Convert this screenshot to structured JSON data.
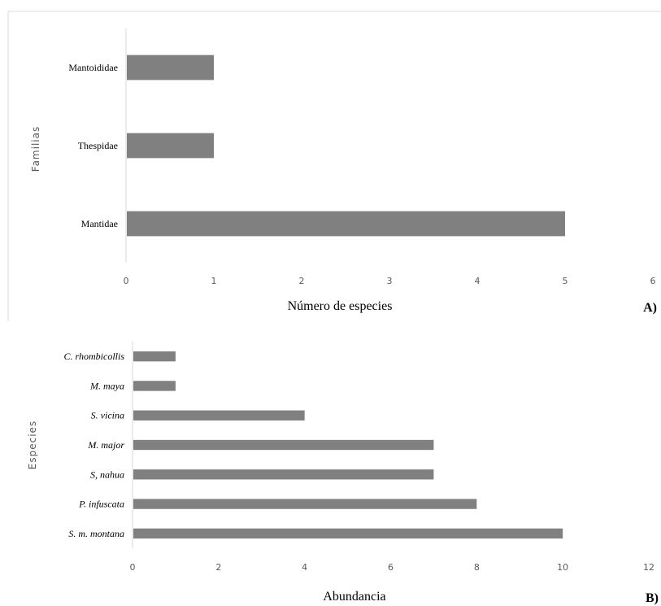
{
  "chart_data": [
    {
      "type": "bar",
      "orientation": "horizontal",
      "categories": [
        "Mantoididae",
        "Thespidae",
        "Mantidae"
      ],
      "values": [
        1,
        1,
        5
      ],
      "xlim": [
        0,
        6
      ],
      "xticks": [
        "0",
        "1",
        "2",
        "3",
        "4",
        "5",
        "6"
      ],
      "xlabel": "Número de especies",
      "ylabel": "Familias",
      "panel_label": "A)",
      "bar_color": "#808080",
      "category_italic": false,
      "grid": false
    },
    {
      "type": "bar",
      "orientation": "horizontal",
      "categories": [
        "C. rhombicollis",
        "M. maya",
        "S. vicina",
        "M. major",
        "S, nahua",
        "P. infuscata",
        "S. m. montana"
      ],
      "values": [
        1,
        1,
        4,
        7,
        7,
        8,
        10
      ],
      "xlim": [
        0,
        12
      ],
      "xticks": [
        "0",
        "2",
        "4",
        "6",
        "8",
        "10",
        "12"
      ],
      "xlabel": "Abundancia",
      "ylabel": "Especies",
      "panel_label": "B)",
      "bar_color": "#808080",
      "category_italic": true,
      "grid": false
    }
  ]
}
